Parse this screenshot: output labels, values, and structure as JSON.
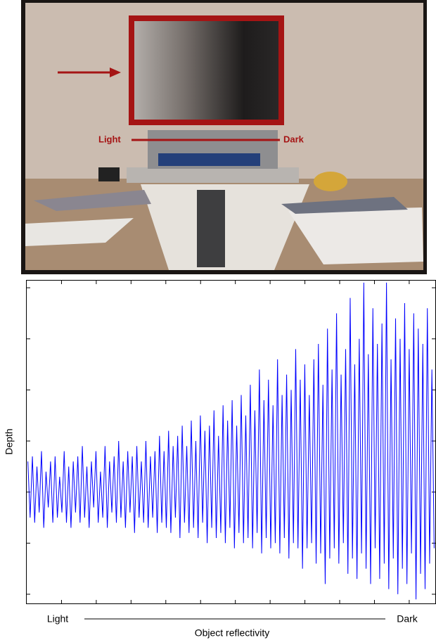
{
  "photo": {
    "label_light": "Light",
    "label_dark": "Dark"
  },
  "chart_data": {
    "type": "line",
    "y_label": "Depth",
    "x_label": "Object reflectivity",
    "x_start_label": "Light",
    "x_end_label": "Dark",
    "color": "#0000ff",
    "xlim": [
      0,
      11.75
    ],
    "xticks": [
      1,
      2,
      3,
      4,
      5,
      6,
      7,
      8,
      9,
      10,
      11
    ],
    "ylim": [
      -0.18,
      6.14
    ],
    "yticks": [
      0,
      1,
      2,
      3,
      4,
      5,
      6
    ],
    "values": [
      2.6,
      1.5,
      2.7,
      1.4,
      2.5,
      1.6,
      2.8,
      1.3,
      2.4,
      1.7,
      2.6,
      1.4,
      2.7,
      1.5,
      2.3,
      1.6,
      2.8,
      1.4,
      2.5,
      1.3,
      2.6,
      1.6,
      2.7,
      1.4,
      2.9,
      1.5,
      2.5,
      1.3,
      2.6,
      1.7,
      2.8,
      1.4,
      2.4,
      1.5,
      2.9,
      1.3,
      2.6,
      1.6,
      2.7,
      1.4,
      3.0,
      1.5,
      2.6,
      1.3,
      2.8,
      1.6,
      2.7,
      1.2,
      2.9,
      1.5,
      2.6,
      1.4,
      3.0,
      1.3,
      2.7,
      1.5,
      2.8,
      1.2,
      3.1,
      1.4,
      2.8,
      1.3,
      3.2,
      1.2,
      2.9,
      1.5,
      3.1,
      1.1,
      3.3,
      1.4,
      2.9,
      1.2,
      3.4,
      1.3,
      3.0,
      1.1,
      3.5,
      1.4,
      3.2,
      1.0,
      3.3,
      1.3,
      3.6,
      1.1,
      3.1,
      1.2,
      3.7,
      1.0,
      3.4,
      1.3,
      3.8,
      0.9,
      3.3,
      1.2,
      3.9,
      1.0,
      3.5,
      1.1,
      4.1,
      0.9,
      3.6,
      1.2,
      4.4,
      0.8,
      3.8,
      1.1,
      4.2,
      0.9,
      3.7,
      1.0,
      4.6,
      0.8,
      3.9,
      1.1,
      4.3,
      0.7,
      4.0,
      1.0,
      4.8,
      0.9,
      4.2,
      0.5,
      4.5,
      0.9,
      3.9,
      1.0,
      4.6,
      0.6,
      4.9,
      0.8,
      4.1,
      0.2,
      5.2,
      0.7,
      4.4,
      0.9,
      5.5,
      0.6,
      4.3,
      1.0,
      4.8,
      0.4,
      5.8,
      0.7,
      4.5,
      0.3,
      5.0,
      0.8,
      6.1,
      0.5,
      4.7,
      0.2,
      5.6,
      0.9,
      4.9,
      0.3,
      5.3,
      0.6,
      6.1,
      0.1,
      4.6,
      0.7,
      5.4,
      0.0,
      5.0,
      0.5,
      5.7,
      0.2,
      4.8,
      0.8,
      5.5,
      -0.1,
      5.2,
      0.4,
      4.9,
      0.1,
      5.6,
      0.6,
      4.4,
      0.9
    ]
  }
}
